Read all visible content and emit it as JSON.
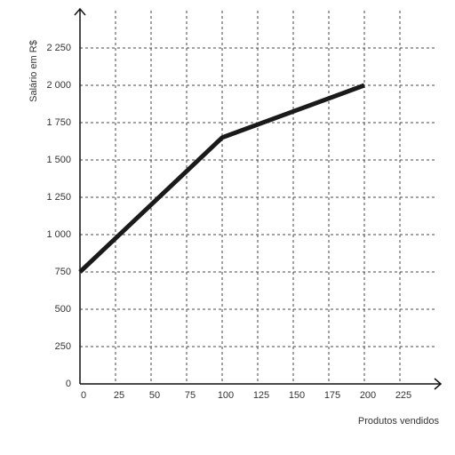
{
  "chart_data": {
    "type": "line",
    "y_label": "Salário em R$",
    "x_label": "Produtos vendidos",
    "x": [
      0,
      100,
      200
    ],
    "series": [
      {
        "color": "#1a1a1a",
        "values": [
          750,
          1650,
          2000
        ]
      }
    ],
    "xlim": [
      0,
      250
    ],
    "ylim": [
      0,
      2500
    ],
    "xticks": [
      0,
      25,
      50,
      75,
      100,
      125,
      150,
      175,
      200,
      225
    ],
    "yticks": [
      0,
      250,
      500,
      750,
      {
        "value": 1000,
        "label": "1 000"
      },
      {
        "value": 1250,
        "label": "1 250"
      },
      {
        "value": 1500,
        "label": "1 500"
      },
      {
        "value": 1750,
        "label": "1 750"
      },
      {
        "value": 2000,
        "label": "2 000"
      },
      {
        "value": 2250,
        "label": "2 250"
      }
    ],
    "grid": true
  }
}
